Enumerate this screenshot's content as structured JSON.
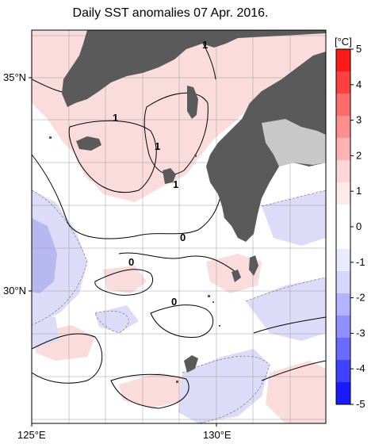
{
  "title": "Daily SST anomalies 07 Apr. 2016.",
  "axes": {
    "lat_labels": [
      "35°N",
      "30°N"
    ],
    "lon_labels": [
      "125°E",
      "130°E"
    ]
  },
  "contour_labels": [
    "1",
    "1",
    "1",
    "1",
    "0",
    "0",
    "0"
  ],
  "colorbar": {
    "unit": "[°C]",
    "ticks": [
      "5",
      "4",
      "3",
      "2",
      "1",
      "0",
      "-1",
      "-2",
      "-3",
      "-4",
      "-5"
    ],
    "colors": [
      "#ff1a1a",
      "#ff4040",
      "#ff6a6a",
      "#ff8f8f",
      "#ffb3b3",
      "#ffd6d6",
      "#ffeaea",
      "#ffffff",
      "#ffffff",
      "#eaeaff",
      "#d6d6ff",
      "#b3b3ff",
      "#8f8fff",
      "#6a6aff",
      "#4040ff",
      "#1a1aff"
    ]
  },
  "colors": {
    "land": "#5a5a5a",
    "no_data": "#c8c8c8",
    "warm_fill": "#fadcdc",
    "cool_fill": "#dcdcf8"
  }
}
